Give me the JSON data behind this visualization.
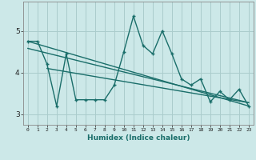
{
  "xlabel": "Humidex (Indice chaleur)",
  "ylabel": "",
  "background_color": "#cce8e8",
  "grid_color": "#aacccc",
  "line_color": "#1a6e6a",
  "x_data": [
    0,
    1,
    2,
    3,
    4,
    5,
    6,
    7,
    8,
    9,
    10,
    11,
    12,
    13,
    14,
    15,
    16,
    17,
    18,
    19,
    20,
    21,
    22,
    23
  ],
  "y_main": [
    4.75,
    4.75,
    4.2,
    3.2,
    4.45,
    3.35,
    3.35,
    3.35,
    3.35,
    3.7,
    4.5,
    5.35,
    4.65,
    4.45,
    5.0,
    4.45,
    3.85,
    3.7,
    3.85,
    3.3,
    3.55,
    3.35,
    3.6,
    3.2
  ],
  "trend1_x": [
    0,
    23
  ],
  "trend1_y": [
    4.75,
    3.2
  ],
  "trend2_x": [
    0,
    23
  ],
  "trend2_y": [
    4.58,
    3.28
  ],
  "trend3_x": [
    2,
    23
  ],
  "trend3_y": [
    4.1,
    3.28
  ],
  "ylim": [
    2.75,
    5.7
  ],
  "xlim": [
    -0.5,
    23.5
  ],
  "yticks": [
    3,
    4,
    5
  ],
  "xticks": [
    0,
    1,
    2,
    3,
    4,
    5,
    6,
    7,
    8,
    9,
    10,
    11,
    12,
    13,
    14,
    15,
    16,
    17,
    18,
    19,
    20,
    21,
    22,
    23
  ]
}
